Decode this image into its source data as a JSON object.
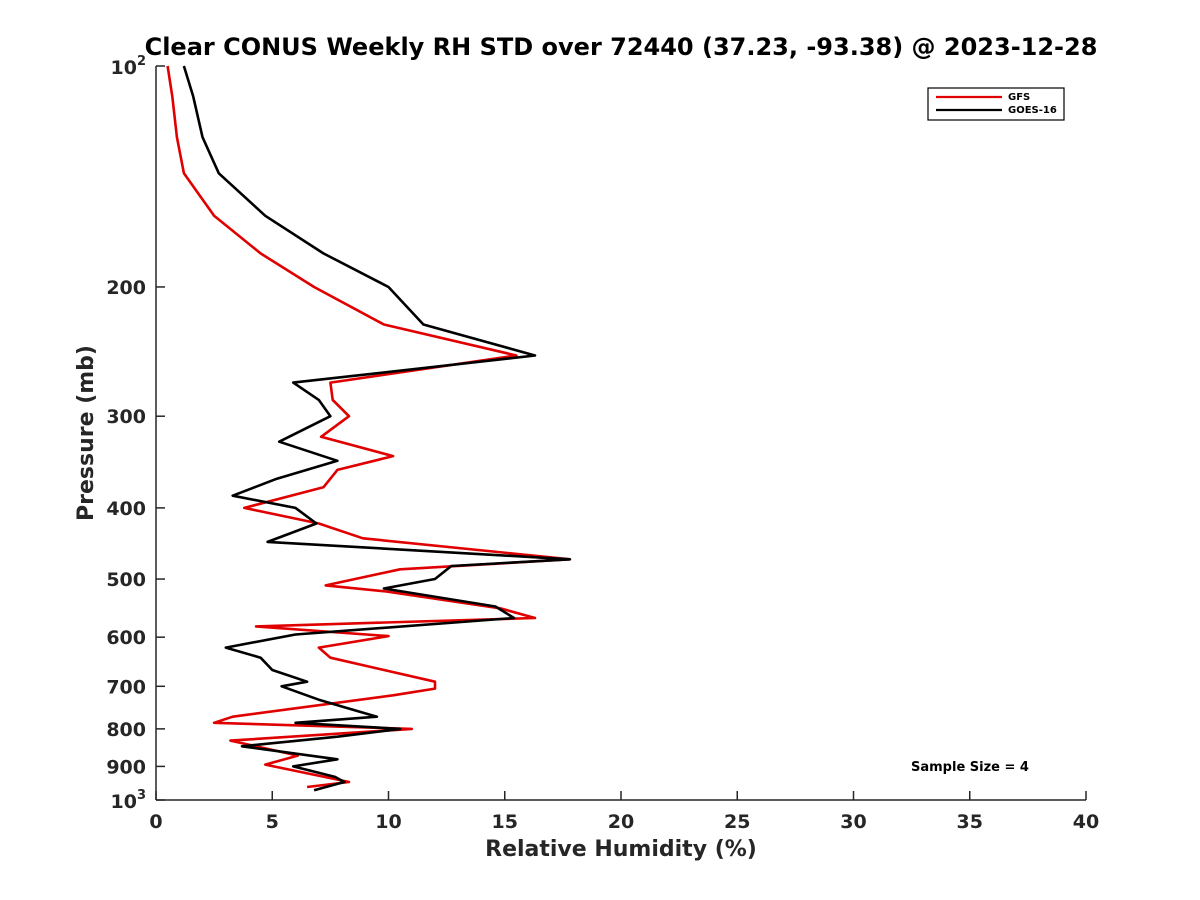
{
  "chart_data": {
    "type": "line",
    "title": "Clear CONUS Weekly RH STD over 72440 (37.23, -93.38) @ 2023-12-28",
    "xlabel": "Relative Humidity (%)",
    "ylabel": "Pressure (mb)",
    "xlim": [
      0,
      40
    ],
    "ylim": [
      100,
      1000
    ],
    "y_scale": "log",
    "y_reversed": true,
    "x_ticks": [
      0,
      5,
      10,
      15,
      20,
      25,
      30,
      35,
      40
    ],
    "y_ticks": [
      {
        "value": 100,
        "base": "10",
        "exp": "2"
      },
      {
        "value": 200,
        "label": "200"
      },
      {
        "value": 300,
        "label": "300"
      },
      {
        "value": 400,
        "label": "400"
      },
      {
        "value": 500,
        "label": "500"
      },
      {
        "value": 600,
        "label": "600"
      },
      {
        "value": 700,
        "label": "700"
      },
      {
        "value": 800,
        "label": "800"
      },
      {
        "value": 900,
        "label": "900"
      },
      {
        "value": 1000,
        "base": "10",
        "exp": "3"
      }
    ],
    "grid": false,
    "legend_position": "top-right",
    "annotation": "Sample Size = 4",
    "series": [
      {
        "name": "GFS",
        "color": "#e00000",
        "points": [
          [
            0.5,
            100
          ],
          [
            0.7,
            110
          ],
          [
            0.9,
            125
          ],
          [
            1.2,
            140
          ],
          [
            2.5,
            160
          ],
          [
            4.5,
            180
          ],
          [
            6.8,
            200
          ],
          [
            9.8,
            225
          ],
          [
            15.5,
            248
          ],
          [
            7.5,
            270
          ],
          [
            7.6,
            285
          ],
          [
            8.3,
            300
          ],
          [
            7.1,
            320
          ],
          [
            10.2,
            340
          ],
          [
            7.8,
            355
          ],
          [
            7.2,
            375
          ],
          [
            3.8,
            400
          ],
          [
            7.0,
            420
          ],
          [
            8.9,
            440
          ],
          [
            17.8,
            470
          ],
          [
            10.5,
            485
          ],
          [
            7.3,
            510
          ],
          [
            9.9,
            520
          ],
          [
            14.8,
            548
          ],
          [
            16.3,
            565
          ],
          [
            4.3,
            580
          ],
          [
            10.0,
            598
          ],
          [
            7.0,
            620
          ],
          [
            7.5,
            640
          ],
          [
            12.0,
            690
          ],
          [
            12.0,
            705
          ],
          [
            10.2,
            720
          ],
          [
            3.3,
            770
          ],
          [
            2.5,
            785
          ],
          [
            11.0,
            800
          ],
          [
            3.2,
            830
          ],
          [
            6.1,
            870
          ],
          [
            4.7,
            895
          ],
          [
            8.3,
            945
          ],
          [
            6.5,
            960
          ]
        ]
      },
      {
        "name": "GOES-16",
        "color": "#000000",
        "points": [
          [
            1.2,
            100
          ],
          [
            1.6,
            110
          ],
          [
            2.0,
            125
          ],
          [
            2.7,
            140
          ],
          [
            4.7,
            160
          ],
          [
            7.2,
            180
          ],
          [
            10.0,
            200
          ],
          [
            11.5,
            225
          ],
          [
            16.3,
            248
          ],
          [
            5.9,
            270
          ],
          [
            7.0,
            285
          ],
          [
            7.5,
            300
          ],
          [
            5.3,
            325
          ],
          [
            7.8,
            345
          ],
          [
            5.2,
            365
          ],
          [
            3.3,
            385
          ],
          [
            6.0,
            400
          ],
          [
            6.9,
            420
          ],
          [
            4.8,
            445
          ],
          [
            17.8,
            470
          ],
          [
            12.7,
            480
          ],
          [
            12.0,
            500
          ],
          [
            9.8,
            515
          ],
          [
            14.6,
            545
          ],
          [
            15.4,
            565
          ],
          [
            6.0,
            595
          ],
          [
            3.0,
            620
          ],
          [
            4.5,
            640
          ],
          [
            5.0,
            665
          ],
          [
            6.5,
            690
          ],
          [
            5.4,
            700
          ],
          [
            7.0,
            730
          ],
          [
            9.5,
            770
          ],
          [
            6.0,
            785
          ],
          [
            10.5,
            800
          ],
          [
            7.8,
            820
          ],
          [
            3.7,
            845
          ],
          [
            7.8,
            880
          ],
          [
            5.9,
            900
          ],
          [
            7.7,
            930
          ],
          [
            8.1,
            945
          ],
          [
            6.8,
            970
          ]
        ]
      }
    ]
  }
}
